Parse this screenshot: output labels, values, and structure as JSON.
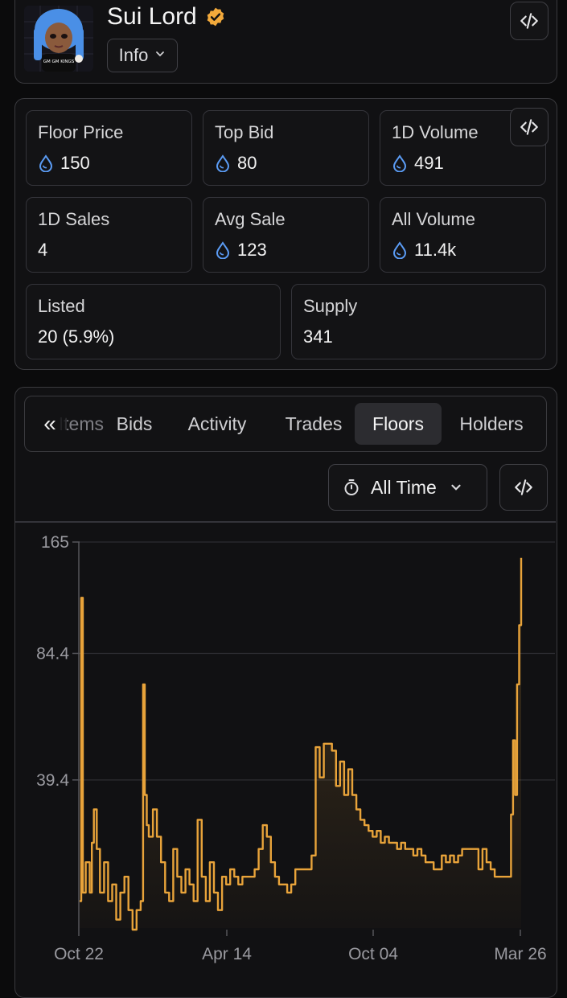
{
  "collection": {
    "name": "Sui Lord",
    "info_label": "Info",
    "avatar_text": "GM GM KINGS"
  },
  "stats": {
    "floor_price": {
      "label": "Floor Price",
      "value": "150"
    },
    "top_bid": {
      "label": "Top Bid",
      "value": "80"
    },
    "volume_1d": {
      "label": "1D Volume",
      "value": "491"
    },
    "sales_1d": {
      "label": "1D Sales",
      "value": "4"
    },
    "avg_sale": {
      "label": "Avg Sale",
      "value": "123"
    },
    "all_volume": {
      "label": "All Volume",
      "value": "11.4k"
    },
    "listed": {
      "label": "Listed",
      "value": "20 (5.9%)"
    },
    "supply": {
      "label": "Supply",
      "value": "341"
    }
  },
  "tabs": {
    "collapse_glyph": "«",
    "items": [
      "Items",
      "Bids",
      "Activity",
      "Trades",
      "Floors",
      "Holders"
    ],
    "active": "Floors"
  },
  "time_filter": {
    "label": "All Time"
  },
  "colors": {
    "accent": "#e8a33a",
    "sui_drop": "#5b9cf5",
    "verified": "#f2a93b"
  },
  "chart_data": {
    "type": "area",
    "y_ticks": [
      "165",
      "84.4",
      "39.4"
    ],
    "x_ticks": [
      "Oct 22",
      "Apr 14",
      "Oct 04",
      "Mar 26"
    ],
    "y_scale": "log",
    "ylim": [
      16,
      165
    ],
    "series": [
      {
        "values": [
          [
            0,
            19
          ],
          [
            0.4,
            118
          ],
          [
            0.8,
            20
          ],
          [
            1.5,
            24
          ],
          [
            2.5,
            20
          ],
          [
            3,
            27
          ],
          [
            3.5,
            33
          ],
          [
            4.2,
            26
          ],
          [
            5,
            20
          ],
          [
            6,
            24
          ],
          [
            7,
            19
          ],
          [
            8,
            21
          ],
          [
            9,
            17
          ],
          [
            10,
            20
          ],
          [
            11,
            22
          ],
          [
            12,
            18
          ],
          [
            13,
            16
          ],
          [
            14,
            18
          ],
          [
            15,
            19
          ],
          [
            15.6,
            70
          ],
          [
            16,
            36
          ],
          [
            16.5,
            30
          ],
          [
            17,
            28
          ],
          [
            18,
            33
          ],
          [
            19,
            28
          ],
          [
            20,
            24
          ],
          [
            21,
            20
          ],
          [
            22,
            19
          ],
          [
            23,
            26
          ],
          [
            24,
            22
          ],
          [
            25,
            20
          ],
          [
            26,
            23
          ],
          [
            27,
            21
          ],
          [
            28,
            19
          ],
          [
            29,
            31
          ],
          [
            30,
            22
          ],
          [
            31,
            19
          ],
          [
            32,
            24
          ],
          [
            33,
            20
          ],
          [
            34,
            18
          ],
          [
            35,
            22
          ],
          [
            36,
            21
          ],
          [
            37,
            23
          ],
          [
            38,
            22
          ],
          [
            39,
            21
          ],
          [
            40,
            22
          ],
          [
            41,
            22
          ],
          [
            42,
            22
          ],
          [
            43,
            23
          ],
          [
            44,
            26
          ],
          [
            45,
            30
          ],
          [
            46,
            28
          ],
          [
            47,
            24
          ],
          [
            48,
            22
          ],
          [
            49,
            21
          ],
          [
            50,
            21
          ],
          [
            51,
            20
          ],
          [
            52,
            21
          ],
          [
            53,
            23
          ],
          [
            55,
            23
          ],
          [
            57,
            25
          ],
          [
            58,
            48
          ],
          [
            59,
            40
          ],
          [
            60,
            49
          ],
          [
            62,
            47
          ],
          [
            63,
            38
          ],
          [
            64,
            44
          ],
          [
            65,
            36
          ],
          [
            66,
            42
          ],
          [
            67,
            36
          ],
          [
            68,
            33
          ],
          [
            69,
            31
          ],
          [
            70,
            30
          ],
          [
            71,
            29
          ],
          [
            72,
            28
          ],
          [
            73,
            29
          ],
          [
            74,
            27
          ],
          [
            75,
            28
          ],
          [
            76,
            27
          ],
          [
            77,
            27
          ],
          [
            78,
            26
          ],
          [
            79,
            27
          ],
          [
            80,
            26
          ],
          [
            81,
            26
          ],
          [
            82,
            25
          ],
          [
            83,
            26
          ],
          [
            84,
            25
          ],
          [
            85,
            24
          ],
          [
            86,
            24
          ],
          [
            87,
            23
          ],
          [
            88,
            23
          ],
          [
            89,
            25
          ],
          [
            90,
            24
          ],
          [
            91,
            25
          ],
          [
            92,
            24
          ],
          [
            93,
            25
          ],
          [
            94,
            26
          ],
          [
            95,
            26
          ],
          [
            96,
            26
          ],
          [
            97,
            26
          ],
          [
            98,
            23
          ],
          [
            99,
            26
          ],
          [
            100,
            24
          ],
          [
            101,
            23
          ],
          [
            102,
            22
          ],
          [
            103,
            22
          ],
          [
            104,
            22
          ],
          [
            105,
            22
          ],
          [
            106,
            32
          ],
          [
            106.5,
            50
          ],
          [
            107,
            36
          ],
          [
            107.5,
            70
          ],
          [
            108,
            100
          ],
          [
            108.5,
            150
          ]
        ]
      }
    ]
  }
}
